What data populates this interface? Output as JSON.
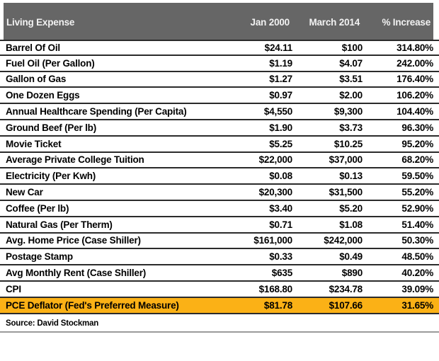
{
  "chart_data": {
    "type": "table",
    "columns": [
      "Living Expense",
      "Jan 2000",
      "March 2014",
      "% Increase"
    ],
    "rows": [
      {
        "expense": "Barrel Of Oil",
        "jan2000": "$24.11",
        "march2014": "$100",
        "increase": "314.80%"
      },
      {
        "expense": "Fuel Oil (Per Gallon)",
        "jan2000": "$1.19",
        "march2014": "$4.07",
        "increase": "242.00%"
      },
      {
        "expense": "Gallon of Gas",
        "jan2000": "$1.27",
        "march2014": "$3.51",
        "increase": "176.40%"
      },
      {
        "expense": "One Dozen Eggs",
        "jan2000": "$0.97",
        "march2014": "$2.00",
        "increase": "106.20%"
      },
      {
        "expense": "Annual Healthcare Spending (Per Capita)",
        "jan2000": "$4,550",
        "march2014": "$9,300",
        "increase": "104.40%"
      },
      {
        "expense": "Ground Beef (Per lb)",
        "jan2000": "$1.90",
        "march2014": "$3.73",
        "increase": "96.30%"
      },
      {
        "expense": "Movie Ticket",
        "jan2000": "$5.25",
        "march2014": "$10.25",
        "increase": "95.20%"
      },
      {
        "expense": "Average Private College Tuition",
        "jan2000": "$22,000",
        "march2014": "$37,000",
        "increase": "68.20%"
      },
      {
        "expense": "Electricity (Per Kwh)",
        "jan2000": "$0.08",
        "march2014": "$0.13",
        "increase": "59.50%"
      },
      {
        "expense": "New Car",
        "jan2000": "$20,300",
        "march2014": "$31,500",
        "increase": "55.20%"
      },
      {
        "expense": "Coffee (Per lb)",
        "jan2000": "$3.40",
        "march2014": "$5.20",
        "increase": "52.90%"
      },
      {
        "expense": "Natural Gas (Per Therm)",
        "jan2000": "$0.71",
        "march2014": "$1.08",
        "increase": "51.40%"
      },
      {
        "expense": "Avg. Home Price (Case Shiller)",
        "jan2000": "$161,000",
        "march2014": "$242,000",
        "increase": "50.30%"
      },
      {
        "expense": "Postage Stamp",
        "jan2000": "$0.33",
        "march2014": "$0.49",
        "increase": "48.50%"
      },
      {
        "expense": "Avg Monthly Rent (Case Shiller)",
        "jan2000": "$635",
        "march2014": "$890",
        "increase": "40.20%"
      },
      {
        "expense": "CPI",
        "jan2000": "$168.80",
        "march2014": "$234.78",
        "increase": "39.09%"
      },
      {
        "expense": "PCE Deflator (Fed's Preferred Measure)",
        "jan2000": "$81.78",
        "march2014": "$107.66",
        "increase": "31.65%"
      }
    ],
    "highlighted_row_index": 16,
    "source": "Source: David Stockman",
    "layout": {
      "legend": "none",
      "grid": "horizontal-dividers",
      "header_bg": "#666666",
      "header_text": "#f2f2f2",
      "highlight_bg": "#FBB116",
      "row_divider": "#2b2b2b",
      "body_text": "#000000"
    }
  }
}
